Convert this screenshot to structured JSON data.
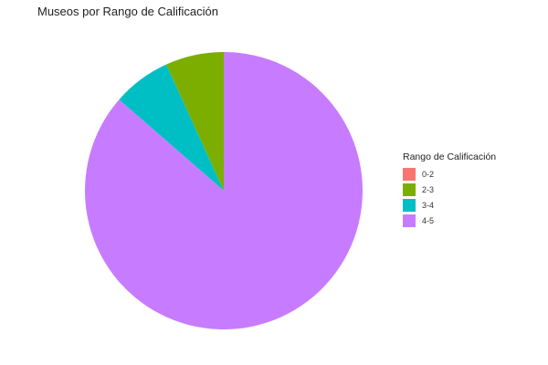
{
  "chart_data": {
    "type": "pie",
    "title": "Museos por Rango de Calificación",
    "legend_title": "Rango de Calificación",
    "legend_position": "right",
    "categories": [
      "0-2",
      "2-3",
      "3-4",
      "4-5"
    ],
    "values": [
      0,
      6.8,
      6.8,
      86.4
    ],
    "colors": [
      "#F8766D",
      "#7CAE00",
      "#00BFC4",
      "#C77CFF"
    ]
  }
}
